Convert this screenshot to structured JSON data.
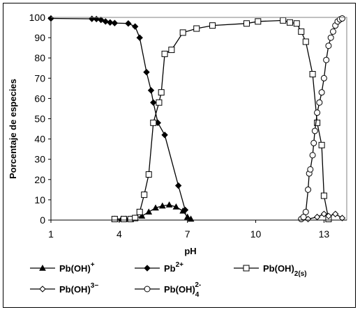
{
  "chart_data": {
    "type": "line",
    "xlabel": "pH",
    "ylabel": "Porcentaje de especies",
    "xlim": [
      1,
      14
    ],
    "ylim": [
      0,
      100
    ],
    "xticks": [
      "1",
      "4",
      "7",
      "10",
      "13"
    ],
    "yticks": [
      "0",
      "10",
      "20",
      "30",
      "40",
      "50",
      "60",
      "70",
      "80",
      "90",
      "100"
    ],
    "grid": false,
    "legend_position": "bottom",
    "series": [
      {
        "name": "Pb(OH)+",
        "marker": "triangle",
        "x": [
          3.8,
          4.1,
          4.3,
          4.5,
          4.7,
          5.0,
          5.3,
          5.6,
          5.9,
          6.2,
          6.5,
          6.8,
          7.0,
          7.15
        ],
        "y": [
          0.5,
          0.5,
          0.5,
          0.5,
          1.0,
          2.0,
          4.0,
          6.0,
          7.0,
          7.5,
          6.5,
          4.5,
          1.5,
          0.5
        ]
      },
      {
        "name": "Pb2+",
        "marker": "diamond-filled",
        "x": [
          1.0,
          2.8,
          3.0,
          3.2,
          3.4,
          3.6,
          3.8,
          4.4,
          4.7,
          4.9,
          5.2,
          5.4,
          5.5,
          5.7,
          6.0,
          6.6,
          6.9
        ],
        "y": [
          99.5,
          99.3,
          99.2,
          98.8,
          98.0,
          97.5,
          97.2,
          97.0,
          95.5,
          90.0,
          73.0,
          64.0,
          58.0,
          48.0,
          42.0,
          17.0,
          5.0
        ]
      },
      {
        "name": "Pb(OH)2(s)",
        "marker": "square-open",
        "x": [
          3.8,
          4.2,
          4.5,
          4.7,
          4.9,
          5.1,
          5.3,
          5.5,
          5.75,
          5.85,
          6.0,
          6.3,
          6.8,
          7.4,
          8.1,
          9.6,
          10.1,
          11.2,
          11.5,
          11.8,
          12.0,
          12.2,
          12.5,
          12.7,
          12.9,
          13.0,
          13.2
        ],
        "y": [
          0.5,
          0.5,
          0.5,
          1.0,
          4.0,
          12.5,
          22.5,
          48.0,
          58.0,
          63.0,
          82.0,
          84.0,
          92.5,
          94.5,
          96.0,
          97.0,
          98.0,
          98.5,
          97.5,
          97.0,
          93.0,
          88.0,
          72.0,
          48.0,
          37.0,
          12.0,
          0.5
        ]
      },
      {
        "name": "Pb(OH)3−",
        "marker": "diamond-open",
        "x": [
          12.0,
          12.3,
          12.7,
          13.0,
          13.2,
          13.5,
          13.8
        ],
        "y": [
          0.5,
          0.5,
          1.5,
          3.0,
          2.0,
          3.0,
          1.0
        ]
      },
      {
        "name": "Pb(OH)4 2-",
        "marker": "circle-open",
        "x": [
          12.0,
          12.1,
          12.2,
          12.3,
          12.35,
          12.4,
          12.5,
          12.55,
          12.6,
          12.7,
          12.8,
          12.9,
          13.0,
          13.1,
          13.2,
          13.3,
          13.4,
          13.5,
          13.6,
          13.7,
          13.8
        ],
        "y": [
          0.5,
          1.5,
          4.0,
          15.0,
          23.0,
          25.0,
          32.0,
          38.0,
          44.0,
          53.0,
          58.0,
          63.0,
          70.0,
          79.0,
          86.0,
          90.0,
          93.0,
          96.0,
          98.0,
          99.0,
          99.5
        ]
      }
    ]
  },
  "legend": {
    "items": [
      {
        "base": "Pb(OH)",
        "sup": "+",
        "sub": ""
      },
      {
        "base": "Pb",
        "sup": "2+",
        "sub": ""
      },
      {
        "base": "Pb(OH)",
        "sup": "",
        "sub": "2(s)"
      },
      {
        "base": "Pb(OH)",
        "sup": "3−",
        "sub": ""
      },
      {
        "base": "Pb(OH)",
        "sup": "2-",
        "sub": "4"
      }
    ]
  }
}
